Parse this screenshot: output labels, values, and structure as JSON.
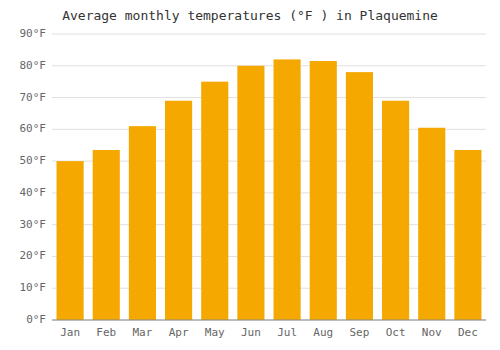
{
  "chart_data": {
    "type": "bar",
    "title": "Average monthly temperatures (°F ) in Plaquemine",
    "categories": [
      "Jan",
      "Feb",
      "Mar",
      "Apr",
      "May",
      "Jun",
      "Jul",
      "Aug",
      "Sep",
      "Oct",
      "Nov",
      "Dec"
    ],
    "values": [
      50,
      53.5,
      61,
      69,
      75,
      80,
      82,
      81.5,
      78,
      69,
      60.5,
      53.5
    ],
    "color": "#F5A800",
    "ylim": [
      0,
      90
    ],
    "yticks": [
      {
        "value": 0,
        "label": "0°F"
      },
      {
        "value": 10,
        "label": "10°F"
      },
      {
        "value": 20,
        "label": "20°F"
      },
      {
        "value": 30,
        "label": "30°F"
      },
      {
        "value": 40,
        "label": "40°F"
      },
      {
        "value": 50,
        "label": "50°F"
      },
      {
        "value": 60,
        "label": "60°F"
      },
      {
        "value": 70,
        "label": "70°F"
      },
      {
        "value": 80,
        "label": "80°F"
      },
      {
        "value": 90,
        "label": "90°F"
      }
    ],
    "grid": true
  }
}
